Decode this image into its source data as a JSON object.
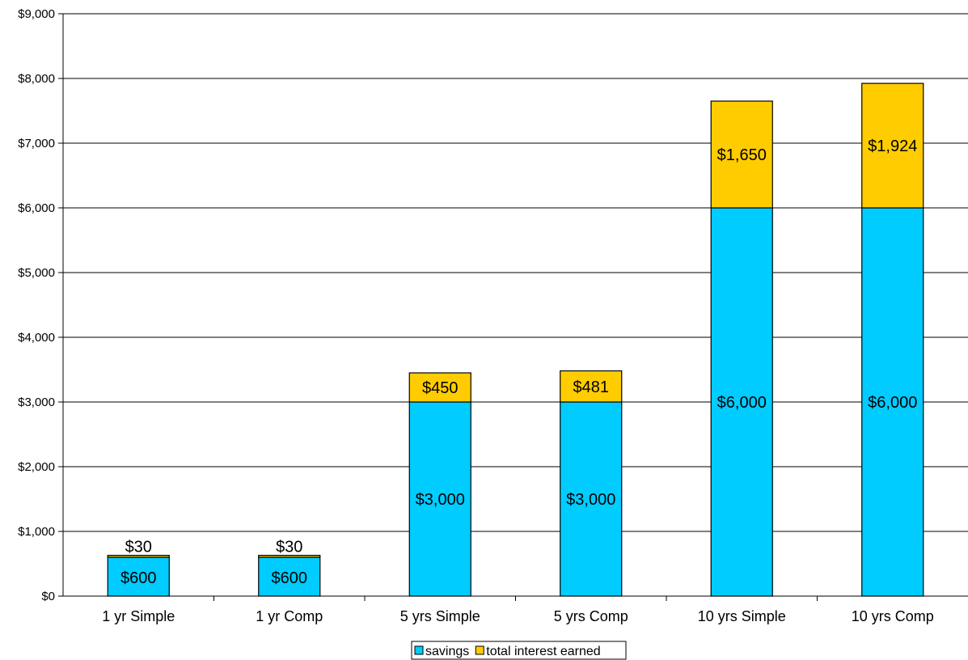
{
  "chart_data": {
    "type": "bar",
    "stacked": true,
    "categories": [
      "1 yr Simple",
      "1 yr Comp",
      "5 yrs Simple",
      "5 yrs Comp",
      "10 yrs Simple",
      "10 yrs Comp"
    ],
    "series": [
      {
        "name": "savings",
        "color": "#00CCFF",
        "values": [
          600,
          600,
          3000,
          3000,
          6000,
          6000
        ],
        "labels": [
          "$600",
          "$600",
          "$3,000",
          "$3,000",
          "$6,000",
          "$6,000"
        ]
      },
      {
        "name": "total interest earned",
        "color": "#FFCC00",
        "values": [
          30,
          30,
          450,
          481,
          1650,
          1924
        ],
        "labels": [
          "$30",
          "$30",
          "$450",
          "$481",
          "$1,650",
          "$1,924"
        ]
      }
    ],
    "ylim": [
      0,
      9000
    ],
    "yticks": [
      0,
      1000,
      2000,
      3000,
      4000,
      5000,
      6000,
      7000,
      8000,
      9000
    ],
    "ytick_labels": [
      "$0",
      "$1,000",
      "$2,000",
      "$3,000",
      "$4,000",
      "$5,000",
      "$6,000",
      "$7,000",
      "$8,000",
      "$9,000"
    ],
    "grid": true,
    "legend": "bottom-center",
    "title": "",
    "xlabel": "",
    "ylabel": ""
  }
}
